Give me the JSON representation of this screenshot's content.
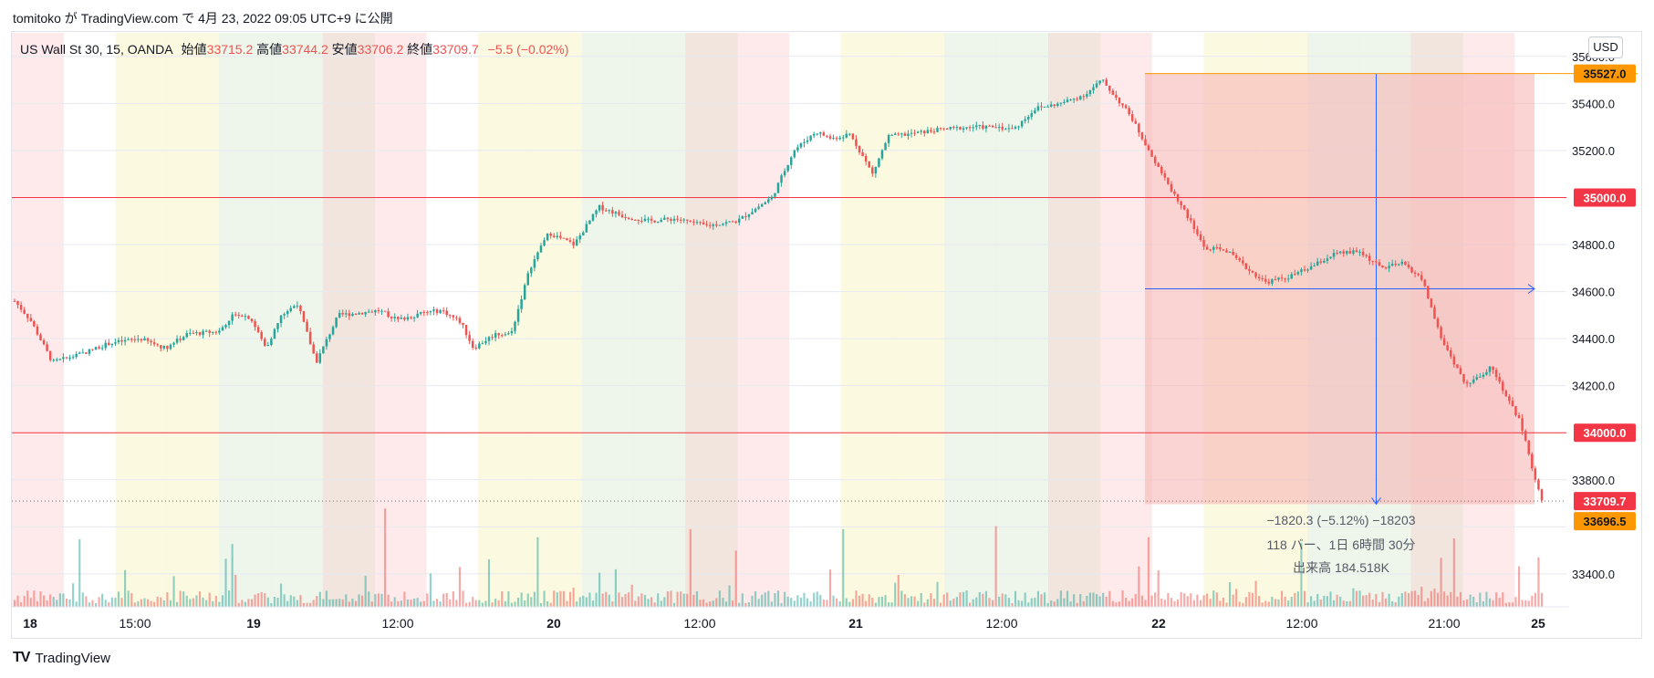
{
  "header": {
    "text": "tomitoko が TradingView.com で 4月 23, 2022 09:05 UTC+9 に公開"
  },
  "legend": {
    "symbol": "US Wall St 30, 15, OANDA",
    "open_label": "始値",
    "open": "33715.2",
    "high_label": "高値",
    "high": "33744.2",
    "low_label": "安値",
    "low": "33706.2",
    "close_label": "終値",
    "close": "33709.7",
    "change": "−5.5 (−0.02%)"
  },
  "currency_button": "USD",
  "footer": {
    "logo": "TV",
    "brand": "TradingView"
  },
  "colors": {
    "up": "#26a69a",
    "down": "#ef5350",
    "hline": "#f23645",
    "measure_fill": "#f7b6b6",
    "measure_line": "#2962ff",
    "price_tag": "#f23645",
    "orange": "#ff9800"
  },
  "measurement": {
    "line1": "−1820.3 (−5.12%) −18203",
    "line2": "118 バー、1日 6時間 30分",
    "line3": "出来高 184.518K"
  },
  "chart_data": {
    "type": "candlestick",
    "symbol": "US Wall St 30",
    "interval": "15",
    "ylim": [
      33260,
      35700
    ],
    "y_ticks": [
      33400,
      33600,
      33800,
      34000,
      34200,
      34400,
      34600,
      34800,
      35000,
      35200,
      35400,
      35600
    ],
    "y_tick_labels": [
      "33400.0",
      "",
      "33800.0",
      "",
      "34200.0",
      "34400.0",
      "34600.0",
      "34800.0",
      "",
      "35200.0",
      "35400.0",
      "35600.0"
    ],
    "x_tick_labels": [
      "18",
      "15:00",
      "19",
      "12:00",
      "20",
      "12:00",
      "21",
      "12:00",
      "22",
      "12:00",
      "21:00",
      "25"
    ],
    "horizontal_lines": [
      35000.0,
      34000.0
    ],
    "price_tags": [
      {
        "label": "35527.0",
        "value": 35527.0,
        "color": "#ff9800"
      },
      {
        "label": "35000.0",
        "value": 35000.0,
        "color": "#f23645"
      },
      {
        "label": "34000.0",
        "value": 34000.0,
        "color": "#f23645"
      },
      {
        "label": "33709.7",
        "value": 33709.7,
        "color": "#f23645"
      },
      {
        "label": "33696.5",
        "value": 33696.5,
        "color": "#ff9800"
      }
    ],
    "measure_range": {
      "from": 35527.0,
      "to": 33696.5,
      "change": -1820.3,
      "change_pct": -5.12,
      "bars": 118
    },
    "price_path": [
      [
        0,
        34560
      ],
      [
        0.5,
        34480
      ],
      [
        1.2,
        34300
      ],
      [
        2.0,
        34330
      ],
      [
        3.0,
        34380
      ],
      [
        4.0,
        34400
      ],
      [
        4.8,
        34360
      ],
      [
        5.5,
        34420
      ],
      [
        6.5,
        34430
      ],
      [
        7.0,
        34510
      ],
      [
        7.5,
        34490
      ],
      [
        8.0,
        34360
      ],
      [
        8.5,
        34500
      ],
      [
        9.0,
        34550
      ],
      [
        9.6,
        34300
      ],
      [
        10.3,
        34500
      ],
      [
        11.0,
        34510
      ],
      [
        11.6,
        34520
      ],
      [
        12.2,
        34480
      ],
      [
        13.0,
        34510
      ],
      [
        13.6,
        34520
      ],
      [
        14.2,
        34470
      ],
      [
        14.6,
        34360
      ],
      [
        15.3,
        34420
      ],
      [
        15.8,
        34420
      ],
      [
        16.4,
        34700
      ],
      [
        17.0,
        34850
      ],
      [
        17.8,
        34800
      ],
      [
        18.6,
        34960
      ],
      [
        19.4,
        34920
      ],
      [
        20.2,
        34900
      ],
      [
        21.0,
        34910
      ],
      [
        22.0,
        34880
      ],
      [
        23.0,
        34900
      ],
      [
        24.1,
        35000
      ],
      [
        24.8,
        35200
      ],
      [
        25.5,
        35280
      ],
      [
        26.0,
        35250
      ],
      [
        26.6,
        35270
      ],
      [
        27.3,
        35100
      ],
      [
        27.8,
        35260
      ],
      [
        28.5,
        35270
      ],
      [
        29.5,
        35290
      ],
      [
        30.5,
        35300
      ],
      [
        31.2,
        35300
      ],
      [
        31.8,
        35290
      ],
      [
        32.5,
        35380
      ],
      [
        33.3,
        35400
      ],
      [
        34.1,
        35440
      ],
      [
        34.6,
        35500
      ],
      [
        35.5,
        35350
      ],
      [
        36.5,
        35100
      ],
      [
        37.2,
        34950
      ],
      [
        37.9,
        34780
      ],
      [
        38.5,
        34780
      ],
      [
        39.2,
        34700
      ],
      [
        39.8,
        34640
      ],
      [
        40.5,
        34660
      ],
      [
        41.2,
        34700
      ],
      [
        42.0,
        34760
      ],
      [
        42.8,
        34770
      ],
      [
        43.5,
        34700
      ],
      [
        44.2,
        34720
      ],
      [
        44.8,
        34650
      ],
      [
        45.4,
        34400
      ],
      [
        46.2,
        34200
      ],
      [
        47.0,
        34280
      ],
      [
        47.5,
        34150
      ],
      [
        47.9,
        34050
      ],
      [
        48.2,
        33900
      ],
      [
        48.6,
        33710
      ]
    ],
    "volume_profile": "low with spikes at session opens"
  }
}
